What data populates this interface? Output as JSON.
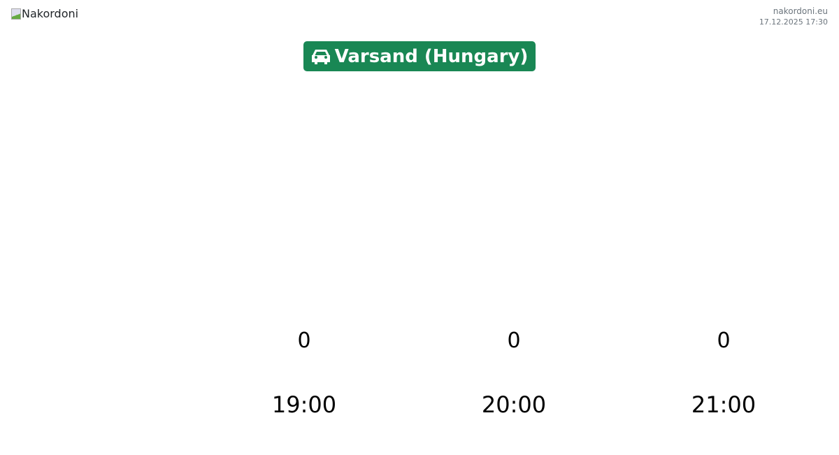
{
  "header": {
    "logo_alt": "Nakordoni",
    "site": "nakordoni.eu",
    "datetime": "17.12.2025 17:30"
  },
  "checkpoint": {
    "icon": "car-icon",
    "title": "Varsand (Hungary)",
    "color": "#198754"
  },
  "chart_data": {
    "type": "bar",
    "categories": [
      "19:00",
      "20:00",
      "21:00"
    ],
    "values": [
      0,
      0,
      0
    ]
  }
}
